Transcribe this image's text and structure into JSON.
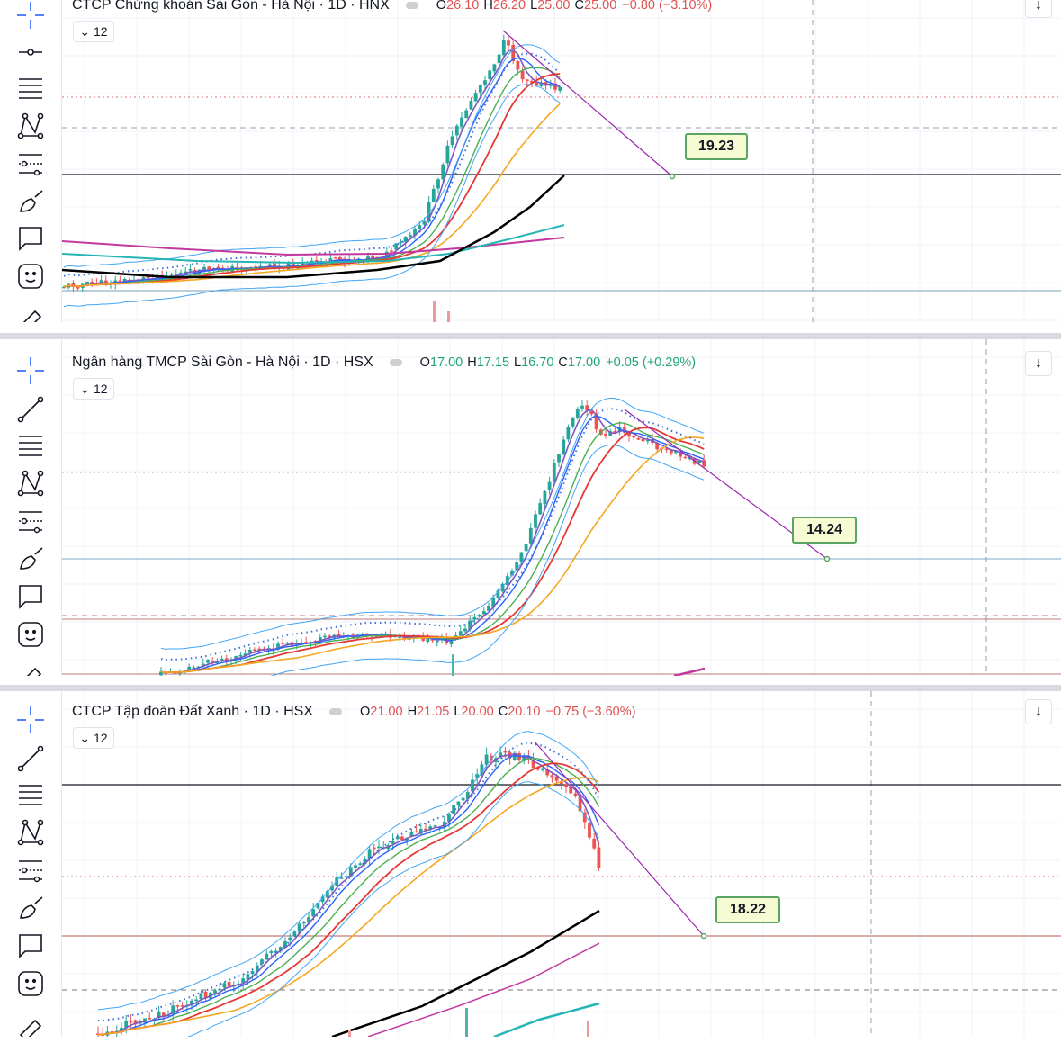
{
  "panels": [
    {
      "title": "CTCP Chứng khoán Sài Gòn - Hà Nội · 1D · HNX",
      "ohlc": {
        "o_key": "O",
        "o": "26.10",
        "h_key": "H",
        "h": "26.20",
        "l_key": "L",
        "l": "25.00",
        "c_key": "C",
        "c": "25.00",
        "change": "−0.80 (−3.10%)",
        "trend": "red"
      },
      "collapse_label": "12",
      "target_label": "19.23"
    },
    {
      "title": "Ngân hàng TMCP Sài Gòn - Hà Nội · 1D · HSX",
      "ohlc": {
        "o_key": "O",
        "o": "17.00",
        "h_key": "H",
        "h": "17.15",
        "l_key": "L",
        "l": "16.70",
        "c_key": "C",
        "c": "17.00",
        "change": "+0.05 (+0.29%)",
        "trend": "green"
      },
      "collapse_label": "12",
      "target_label": "14.24"
    },
    {
      "title": "CTCP Tập đoàn Đất Xanh · 1D · HSX",
      "ohlc": {
        "o_key": "O",
        "o": "21.00",
        "h_key": "H",
        "h": "21.05",
        "l_key": "L",
        "l": "20.00",
        "c_key": "C",
        "c": "20.10",
        "change": "−0.75 (−3.60%)",
        "trend": "red"
      },
      "collapse_label": "12",
      "target_label": "18.22"
    }
  ],
  "toolbar_icons": [
    "crosshair-icon",
    "trend-line-icon",
    "fib-retracement-icon",
    "pattern-icon",
    "prediction-icon",
    "brush-icon",
    "text-note-icon",
    "emoji-icon",
    "ruler-icon"
  ],
  "colors": {
    "up": "#26a69a",
    "down": "#ef5350",
    "projection": "#9c27b0",
    "target_box": "#f7fbd4"
  },
  "chart_data": [
    {
      "type": "candlestick",
      "title": "CTCP Chứng khoán Sài Gòn - Hà Nội · 1D · HNX",
      "close": 25.0,
      "projection_target": 19.23,
      "interval": "1D",
      "exchange": "HNX"
    },
    {
      "type": "candlestick",
      "title": "Ngân hàng TMCP Sài Gòn - Hà Nội · 1D · HSX",
      "close": 17.0,
      "projection_target": 14.24,
      "interval": "1D",
      "exchange": "HSX"
    },
    {
      "type": "candlestick",
      "title": "CTCP Tập đoàn Đất Xanh · 1D · HSX",
      "close": 20.1,
      "projection_target": 18.22,
      "interval": "1D",
      "exchange": "HSX"
    }
  ]
}
